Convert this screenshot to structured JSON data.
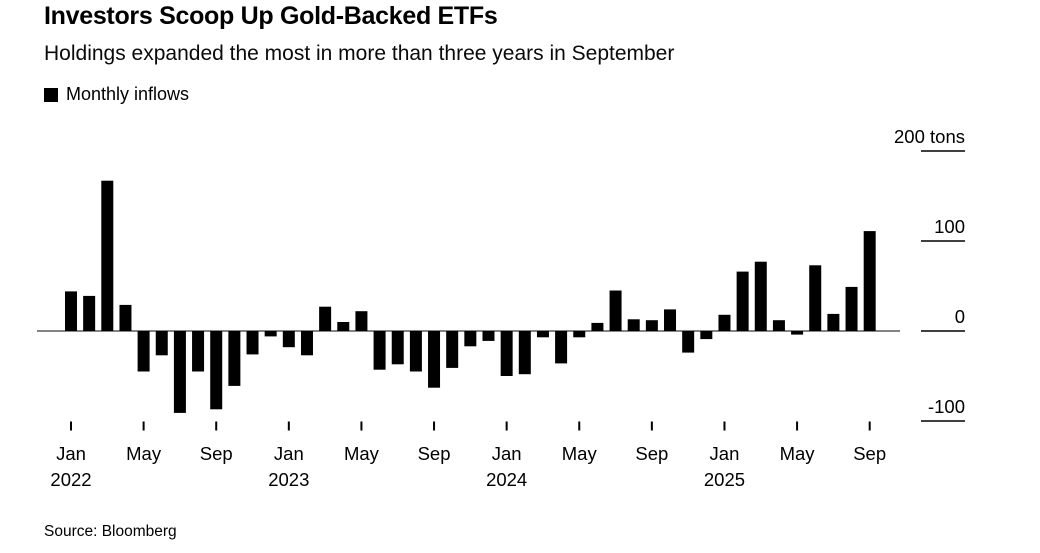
{
  "header": {
    "title": "Investors Scoop Up Gold-Backed ETFs",
    "subtitle": "Holdings expanded the most in more than three years in September"
  },
  "legend": {
    "label": "Monthly inflows",
    "swatch_color": "#000000"
  },
  "source": "Source: Bloomberg",
  "chart_data": {
    "type": "bar",
    "title": "Investors Scoop Up Gold-Backed ETFs",
    "subtitle": "Holdings expanded the most in more than three years in September",
    "series_name": "Monthly inflows",
    "unit": "tons",
    "ylabel": "tons",
    "ylim": [
      -100,
      200
    ],
    "grid": "right-aligned tick dashes only",
    "legend_position": "top-left",
    "bar_color": "#000000",
    "axis_line_color": "#3a3a3a",
    "categories": [
      "Jan 2022",
      "Feb 2022",
      "Mar 2022",
      "Apr 2022",
      "May 2022",
      "Jun 2022",
      "Jul 2022",
      "Aug 2022",
      "Sep 2022",
      "Oct 2022",
      "Nov 2022",
      "Dec 2022",
      "Jan 2023",
      "Feb 2023",
      "Mar 2023",
      "Apr 2023",
      "May 2023",
      "Jun 2023",
      "Jul 2023",
      "Aug 2023",
      "Sep 2023",
      "Oct 2023",
      "Nov 2023",
      "Dec 2023",
      "Jan 2024",
      "Feb 2024",
      "Mar 2024",
      "Apr 2024",
      "May 2024",
      "Jun 2024",
      "Jul 2024",
      "Aug 2024",
      "Sep 2024",
      "Oct 2024",
      "Nov 2024",
      "Dec 2024",
      "Jan 2025",
      "Feb 2025",
      "Mar 2025",
      "Apr 2025",
      "May 2025",
      "Jun 2025",
      "Jul 2025",
      "Aug 2025",
      "Sep 2025"
    ],
    "values": [
      44,
      39,
      167,
      29,
      -45,
      -27,
      -91,
      -45,
      -87,
      -61,
      -26,
      -6,
      -18,
      -27,
      27,
      10,
      22,
      -43,
      -37,
      -45,
      -63,
      -41,
      -17,
      -11,
      -50,
      -48,
      -7,
      -36,
      -7,
      9,
      45,
      13,
      12,
      24,
      -24,
      -9,
      18,
      66,
      77,
      12,
      -4,
      73,
      19,
      49,
      111
    ],
    "yticks": [
      {
        "value": 200,
        "label": "200 tons"
      },
      {
        "value": 100,
        "label": "100"
      },
      {
        "value": 0,
        "label": "0"
      },
      {
        "value": -100,
        "label": "-100"
      }
    ],
    "xticks": [
      {
        "index": 0,
        "month": "Jan",
        "year": "2022"
      },
      {
        "index": 4,
        "month": "May",
        "year": ""
      },
      {
        "index": 8,
        "month": "Sep",
        "year": ""
      },
      {
        "index": 12,
        "month": "Jan",
        "year": "2023"
      },
      {
        "index": 16,
        "month": "May",
        "year": ""
      },
      {
        "index": 20,
        "month": "Sep",
        "year": ""
      },
      {
        "index": 24,
        "month": "Jan",
        "year": "2024"
      },
      {
        "index": 28,
        "month": "May",
        "year": ""
      },
      {
        "index": 32,
        "month": "Sep",
        "year": ""
      },
      {
        "index": 36,
        "month": "Jan",
        "year": "2025"
      },
      {
        "index": 40,
        "month": "May",
        "year": ""
      },
      {
        "index": 44,
        "month": "Sep",
        "year": ""
      }
    ]
  }
}
